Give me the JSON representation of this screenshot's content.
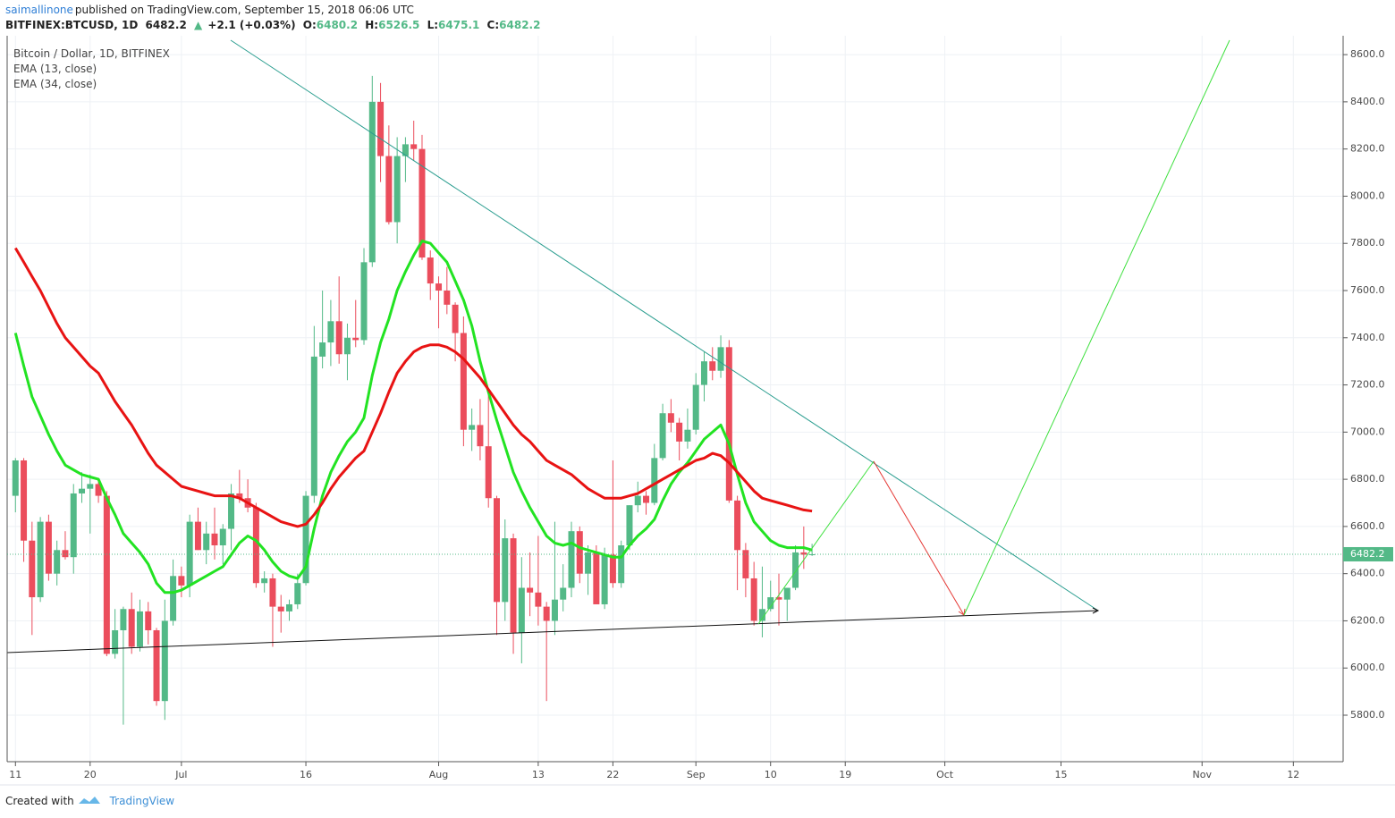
{
  "header": {
    "author": "saimallinone",
    "published": "published on TradingView.com, September 15, 2018 06:06 UTC",
    "symbol": "BITFINEX:BTCUSD, 1D",
    "change": "+2.1 (+0.03%)",
    "ohlc_labels": [
      "O:",
      "H:",
      "L:",
      "C:"
    ]
  },
  "footer": {
    "created": "Created with",
    "brand": "TradingView"
  },
  "chart_data": {
    "type": "candlestick",
    "title": "Bitcoin / Dollar, 1D, BITFINEX",
    "up_color": "#53b987",
    "down_color": "#eb4d5c",
    "grid": true,
    "ylim": [
      5603,
      8680
    ],
    "yticks": [
      {
        "value": 5800,
        "label": "5800.0"
      },
      {
        "value": 6000,
        "label": "6000.0"
      },
      {
        "value": 6200,
        "label": "6200.0"
      },
      {
        "value": 6400,
        "label": "6400.0"
      },
      {
        "value": 6600,
        "label": "6600.0"
      },
      {
        "value": 6800,
        "label": "6800.0"
      },
      {
        "value": 7000,
        "label": "7000.0"
      },
      {
        "value": 7200,
        "label": "7200.0"
      },
      {
        "value": 7400,
        "label": "7400.0"
      },
      {
        "value": 7600,
        "label": "7600.0"
      },
      {
        "value": 7800,
        "label": "7800.0"
      },
      {
        "value": 8000,
        "label": "8000.0"
      },
      {
        "value": 8200,
        "label": "8200.0"
      },
      {
        "value": 8400,
        "label": "8400.0"
      },
      {
        "value": 8600,
        "label": "8600.0"
      }
    ],
    "xlim": [
      "2018-06-10",
      "2018-11-18"
    ],
    "xticks": [
      {
        "value": "2018-06-11",
        "label": "11"
      },
      {
        "value": "2018-06-20",
        "label": "20"
      },
      {
        "value": "2018-07-01",
        "label": "Jul"
      },
      {
        "value": "2018-07-16",
        "label": "16"
      },
      {
        "value": "2018-08-01",
        "label": "Aug"
      },
      {
        "value": "2018-08-13",
        "label": "13"
      },
      {
        "value": "2018-08-22",
        "label": "22"
      },
      {
        "value": "2018-09-01",
        "label": "Sep"
      },
      {
        "value": "2018-09-10",
        "label": "10"
      },
      {
        "value": "2018-09-19",
        "label": "19"
      },
      {
        "value": "2018-10-01",
        "label": "Oct"
      },
      {
        "value": "2018-10-15",
        "label": "15"
      },
      {
        "value": "2018-11-01",
        "label": "Nov"
      },
      {
        "value": "2018-11-12",
        "label": "12"
      }
    ],
    "x": [
      "2018-06-11",
      "2018-06-12",
      "2018-06-13",
      "2018-06-14",
      "2018-06-15",
      "2018-06-16",
      "2018-06-17",
      "2018-06-18",
      "2018-06-19",
      "2018-06-20",
      "2018-06-21",
      "2018-06-22",
      "2018-06-23",
      "2018-06-24",
      "2018-06-25",
      "2018-06-26",
      "2018-06-27",
      "2018-06-28",
      "2018-06-29",
      "2018-06-30",
      "2018-07-01",
      "2018-07-02",
      "2018-07-03",
      "2018-07-04",
      "2018-07-05",
      "2018-07-06",
      "2018-07-07",
      "2018-07-08",
      "2018-07-09",
      "2018-07-10",
      "2018-07-11",
      "2018-07-12",
      "2018-07-13",
      "2018-07-14",
      "2018-07-15",
      "2018-07-16",
      "2018-07-17",
      "2018-07-18",
      "2018-07-19",
      "2018-07-20",
      "2018-07-21",
      "2018-07-22",
      "2018-07-23",
      "2018-07-24",
      "2018-07-25",
      "2018-07-26",
      "2018-07-27",
      "2018-07-28",
      "2018-07-29",
      "2018-07-30",
      "2018-07-31",
      "2018-08-01",
      "2018-08-02",
      "2018-08-03",
      "2018-08-04",
      "2018-08-05",
      "2018-08-06",
      "2018-08-07",
      "2018-08-08",
      "2018-08-09",
      "2018-08-10",
      "2018-08-11",
      "2018-08-12",
      "2018-08-13",
      "2018-08-14",
      "2018-08-15",
      "2018-08-16",
      "2018-08-17",
      "2018-08-18",
      "2018-08-19",
      "2018-08-20",
      "2018-08-21",
      "2018-08-22",
      "2018-08-23",
      "2018-08-24",
      "2018-08-25",
      "2018-08-26",
      "2018-08-27",
      "2018-08-28",
      "2018-08-29",
      "2018-08-30",
      "2018-08-31",
      "2018-09-01",
      "2018-09-02",
      "2018-09-03",
      "2018-09-04",
      "2018-09-05",
      "2018-09-06",
      "2018-09-07",
      "2018-09-08",
      "2018-09-09",
      "2018-09-10",
      "2018-09-11",
      "2018-09-12",
      "2018-09-13",
      "2018-09-14",
      "2018-09-15"
    ],
    "open": [
      6730,
      6880,
      6540,
      6300,
      6620,
      6400,
      6500,
      6470,
      6740,
      6760,
      6780,
      6730,
      6060,
      6160,
      6250,
      6090,
      6240,
      6160,
      5860,
      6200,
      6390,
      6350,
      6620,
      6500,
      6570,
      6520,
      6590,
      6740,
      6720,
      6680,
      6360,
      6380,
      6260,
      6240,
      6270,
      6360,
      6730,
      7320,
      7380,
      7470,
      7330,
      7400,
      7390,
      7720,
      8400,
      8170,
      7890,
      8170,
      8220,
      8200,
      7740,
      7630,
      7600,
      7540,
      7420,
      7010,
      7030,
      6940,
      6720,
      6280,
      6550,
      6150,
      6340,
      6320,
      6260,
      6200,
      6290,
      6340,
      6580,
      6400,
      6490,
      6270,
      6480,
      6360,
      6520,
      6690,
      6730,
      6700,
      6890,
      7080,
      7040,
      6960,
      7010,
      7200,
      7300,
      7260,
      7360,
      6710,
      6500,
      6380,
      6200,
      6250,
      6300,
      6290,
      6340,
      6490,
      6480.2
    ],
    "high": [
      6890,
      6890,
      6620,
      6640,
      6650,
      6540,
      6580,
      6780,
      6830,
      6820,
      6800,
      6750,
      6250,
      6260,
      6320,
      6290,
      6280,
      6170,
      6290,
      6460,
      6430,
      6650,
      6680,
      6620,
      6680,
      6610,
      6780,
      6840,
      6800,
      6700,
      6410,
      6400,
      6310,
      6290,
      6400,
      6750,
      7450,
      7600,
      7560,
      7660,
      7460,
      7560,
      7780,
      8510,
      8480,
      8300,
      8250,
      8250,
      8320,
      8260,
      7770,
      7660,
      7700,
      7550,
      7490,
      7100,
      7140,
      7160,
      6730,
      6630,
      6570,
      6470,
      6490,
      6560,
      6280,
      6620,
      6440,
      6620,
      6600,
      6520,
      6520,
      6510,
      6880,
      6540,
      6690,
      6790,
      6750,
      6950,
      7120,
      7140,
      7060,
      7100,
      7250,
      7340,
      7360,
      7410,
      7390,
      6730,
      6530,
      6450,
      6430,
      6370,
      6400,
      6340,
      6520,
      6600,
      6526.5
    ],
    "low": [
      6660,
      6450,
      6140,
      6280,
      6370,
      6350,
      6460,
      6400,
      6700,
      6570,
      6700,
      6050,
      6040,
      5760,
      6060,
      6070,
      6100,
      5840,
      5780,
      6180,
      6300,
      6300,
      6500,
      6440,
      6460,
      6440,
      6500,
      6700,
      6660,
      6340,
      6320,
      6090,
      6150,
      6200,
      6250,
      6350,
      6700,
      7270,
      7280,
      7290,
      7220,
      7360,
      7370,
      7700,
      8060,
      7880,
      7800,
      8060,
      8150,
      7730,
      7560,
      7440,
      7500,
      7300,
      6940,
      6920,
      6880,
      6680,
      6140,
      6200,
      6060,
      6020,
      6220,
      6180,
      5860,
      6140,
      6240,
      6300,
      6360,
      6310,
      6270,
      6250,
      6340,
      6340,
      6500,
      6660,
      6650,
      6690,
      6880,
      7000,
      6880,
      6930,
      6990,
      7130,
      7220,
      7230,
      6700,
      6330,
      6300,
      6180,
      6130,
      6240,
      6180,
      6200,
      6330,
      6420,
      6475.1
    ],
    "close": [
      6880,
      6540,
      6300,
      6620,
      6400,
      6500,
      6470,
      6740,
      6760,
      6780,
      6730,
      6060,
      6160,
      6250,
      6090,
      6240,
      6160,
      5860,
      6200,
      6390,
      6350,
      6620,
      6500,
      6570,
      6520,
      6590,
      6740,
      6720,
      6680,
      6360,
      6380,
      6260,
      6240,
      6270,
      6360,
      6730,
      7320,
      7380,
      7470,
      7330,
      7400,
      7390,
      7720,
      8400,
      8170,
      7890,
      8170,
      8220,
      8200,
      7740,
      7630,
      7600,
      7540,
      7420,
      7010,
      7030,
      6940,
      6720,
      6280,
      6550,
      6150,
      6340,
      6320,
      6260,
      6200,
      6290,
      6340,
      6580,
      6400,
      6490,
      6270,
      6480,
      6360,
      6520,
      6690,
      6730,
      6700,
      6890,
      7080,
      7040,
      6960,
      7010,
      7200,
      7300,
      7260,
      7360,
      6710,
      6500,
      6380,
      6200,
      6250,
      6300,
      6290,
      6340,
      6490,
      6480.2,
      6482.2
    ],
    "series": [
      {
        "name": "EMA (13, close)",
        "color": "#22e322",
        "values": [
          7420,
          7280,
          7150,
          7070,
          6990,
          6920,
          6860,
          6840,
          6820,
          6810,
          6800,
          6720,
          6650,
          6570,
          6530,
          6490,
          6440,
          6360,
          6320,
          6320,
          6330,
          6350,
          6370,
          6390,
          6410,
          6430,
          6480,
          6530,
          6560,
          6540,
          6500,
          6450,
          6410,
          6390,
          6380,
          6430,
          6590,
          6730,
          6830,
          6900,
          6960,
          7000,
          7060,
          7240,
          7380,
          7480,
          7600,
          7680,
          7750,
          7810,
          7800,
          7760,
          7720,
          7640,
          7560,
          7450,
          7300,
          7170,
          7050,
          6940,
          6830,
          6750,
          6680,
          6620,
          6560,
          6530,
          6520,
          6530,
          6510,
          6500,
          6490,
          6480,
          6470,
          6470,
          6520,
          6560,
          6590,
          6630,
          6710,
          6780,
          6830,
          6870,
          6920,
          6970,
          7000,
          7030,
          6950,
          6820,
          6700,
          6620,
          6580,
          6540,
          6520,
          6510,
          6510,
          6510,
          6500
        ]
      },
      {
        "name": "EMA (34, close)",
        "color": "#e81313",
        "values": [
          7780,
          7720,
          7660,
          7600,
          7530,
          7460,
          7400,
          7360,
          7320,
          7280,
          7250,
          7190,
          7130,
          7080,
          7030,
          6970,
          6910,
          6860,
          6830,
          6800,
          6770,
          6760,
          6750,
          6740,
          6730,
          6730,
          6730,
          6720,
          6700,
          6680,
          6660,
          6640,
          6620,
          6610,
          6600,
          6610,
          6650,
          6700,
          6760,
          6810,
          6850,
          6890,
          6920,
          7000,
          7080,
          7170,
          7250,
          7300,
          7340,
          7360,
          7370,
          7370,
          7360,
          7340,
          7310,
          7270,
          7230,
          7180,
          7130,
          7080,
          7030,
          6990,
          6960,
          6920,
          6880,
          6860,
          6840,
          6820,
          6790,
          6760,
          6740,
          6720,
          6720,
          6720,
          6730,
          6740,
          6760,
          6780,
          6800,
          6820,
          6840,
          6860,
          6880,
          6890,
          6910,
          6900,
          6870,
          6830,
          6790,
          6750,
          6720,
          6710,
          6700,
          6690,
          6680,
          6670,
          6665
        ]
      }
    ]
  }
}
